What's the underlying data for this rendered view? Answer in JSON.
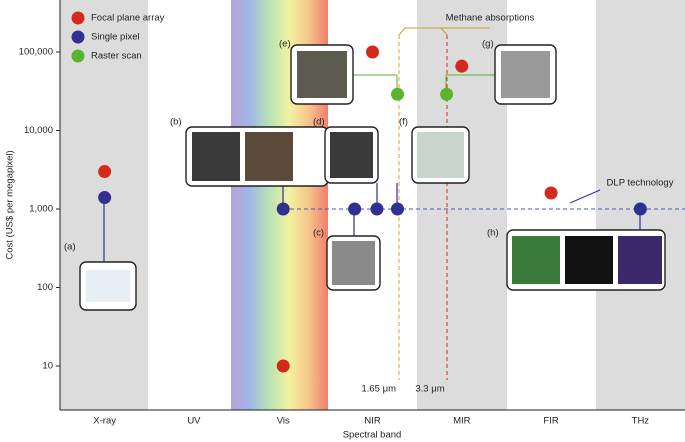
{
  "chart_data": {
    "type": "scatter",
    "x_label": "Spectral band",
    "y_label": "Cost (US$ per megapixel)",
    "categories": [
      "X-ray",
      "UV",
      "Vis",
      "NIR",
      "MIR",
      "FIR",
      "THz"
    ],
    "xlim": [
      -0.5,
      6.5
    ],
    "ylim": [
      2.75,
      460000
    ],
    "log_y": true,
    "yticks": [
      10,
      100,
      {
        "value": 1000,
        "label": "1,000"
      },
      {
        "value": 10000,
        "label": "10,000"
      },
      {
        "value": 100000,
        "label": "100,000"
      }
    ],
    "legend": "top-left",
    "series": [
      {
        "name": "Focal plane array",
        "color": "#d42a1c",
        "x": [
          0,
          2,
          3,
          4,
          5
        ],
        "values": [
          3000,
          10,
          100000,
          66000,
          1600
        ]
      },
      {
        "name": "Single pixel",
        "color": "#2e3192",
        "x": [
          0,
          2,
          2.8,
          3.05,
          3.28,
          6
        ],
        "values": [
          1400,
          1000,
          1000,
          1000,
          1000,
          1000
        ]
      },
      {
        "name": "Raster scan",
        "color": "#5ab52e",
        "x": [
          3.28,
          3.83
        ],
        "values": [
          29000,
          29000
        ]
      }
    ],
    "annotations": [
      "(a)",
      "(b)",
      "(c)",
      "(d)",
      "(e)",
      "(f)",
      "(g)",
      "(h)",
      "Methane absorptions",
      "1.65 μm",
      "3.3 μm",
      "DLP technology"
    ]
  }
}
